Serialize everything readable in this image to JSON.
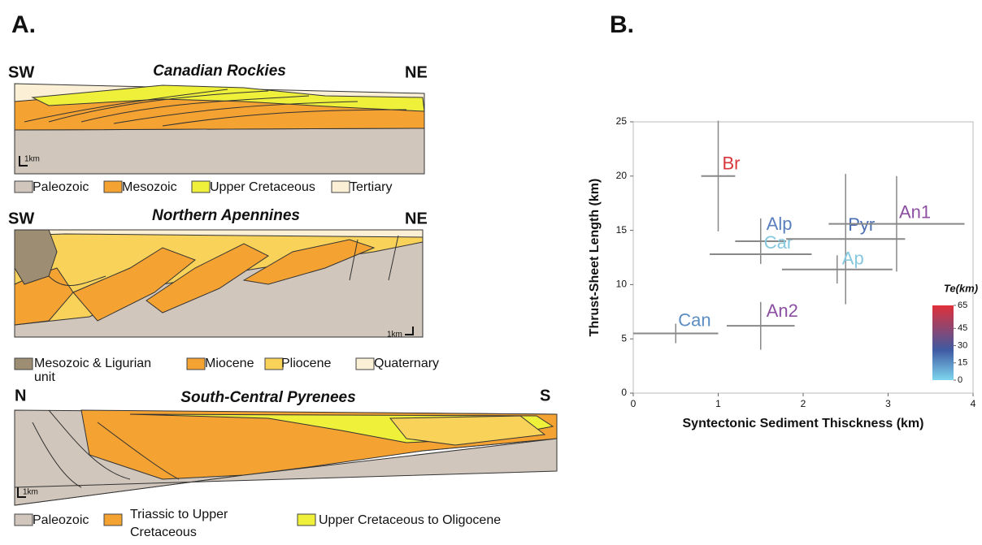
{
  "panel_a": {
    "label": "A.",
    "sections": [
      {
        "title": "Canadian Rockies",
        "left": "SW",
        "right": "NE",
        "scale": "1km",
        "legend": [
          [
            "Paleozoic"
          ],
          [
            "Mesozoic"
          ],
          [
            "Upper Cretaceous"
          ],
          [
            "Tertiary"
          ]
        ]
      },
      {
        "title": "Northern Apennines",
        "left": "SW",
        "right": "NE",
        "scale": "1km",
        "legend": [
          [
            "Mesozoic & Ligurian",
            "unit"
          ],
          [
            "Miocene"
          ],
          [
            "Pliocene"
          ],
          [
            "Quaternary"
          ]
        ]
      },
      {
        "title": "South-Central Pyrenees",
        "left": "N",
        "right": "S",
        "scale": "1km",
        "legend": [
          [
            "Paleozoic"
          ],
          [
            "Triassic to Upper",
            "Cretaceous"
          ],
          [
            "Upper Cretaceous to Oligocene"
          ]
        ]
      }
    ]
  },
  "chart_data": {
    "type": "errorbar-scatter",
    "label": "B.",
    "x_label": "Syntectonic Sediment Thisckness (km)",
    "y_label": "Thrust-Sheet Length (km)",
    "xlim": [
      0,
      4
    ],
    "ylim": [
      0,
      25
    ],
    "xticks": [
      0,
      1,
      2,
      3,
      4
    ],
    "yticks": [
      0,
      5,
      10,
      15,
      20,
      25
    ],
    "series": [
      {
        "name": "Br",
        "color": "#d8373b",
        "x": [
          1.0
        ],
        "values": [
          20
        ],
        "xerr": [
          0.2
        ],
        "yerr": [
          5.1
        ]
      },
      {
        "name": "Alp",
        "color": "#5a7fbf",
        "x": [
          1.5
        ],
        "values": [
          14
        ],
        "xerr": [
          0.3
        ],
        "yerr": [
          2.1
        ]
      },
      {
        "name": "Car",
        "color": "#86c8de",
        "x": [
          1.5
        ],
        "values": [
          12.8
        ],
        "xerr": [
          0.6
        ],
        "yerr": [
          null
        ]
      },
      {
        "name": "Pyr",
        "color": "#4a6fb2",
        "x": [
          2.5
        ],
        "values": [
          14.2
        ],
        "xerr": [
          0.7
        ],
        "yerr": [
          6
        ]
      },
      {
        "name": "An1",
        "color": "#8c4fa2",
        "x": [
          3.1
        ],
        "values": [
          15.6
        ],
        "xerr": [
          0.8
        ],
        "yerr": [
          4.4
        ]
      },
      {
        "name": "Ap",
        "color": "#86c8de",
        "x": [
          2.4
        ],
        "values": [
          11.4
        ],
        "xerr": [
          0.65
        ],
        "yerr": [
          1.3
        ]
      },
      {
        "name": "An2",
        "color": "#8c4fa2",
        "x": [
          1.5
        ],
        "values": [
          6.2
        ],
        "xerr": [
          0.4
        ],
        "yerr": [
          2.2
        ]
      },
      {
        "name": "Can",
        "color": "#5b8cc2",
        "x": [
          0.5
        ],
        "values": [
          5.5
        ],
        "xerr": [
          0.5
        ],
        "yerr": [
          0.9
        ]
      }
    ],
    "colorbar": {
      "label": "Te(km)",
      "ticks": [
        0,
        15,
        30,
        45,
        65
      ],
      "colors": [
        "#7fd6ef",
        "#3f5ba3",
        "#e0303a"
      ]
    }
  }
}
